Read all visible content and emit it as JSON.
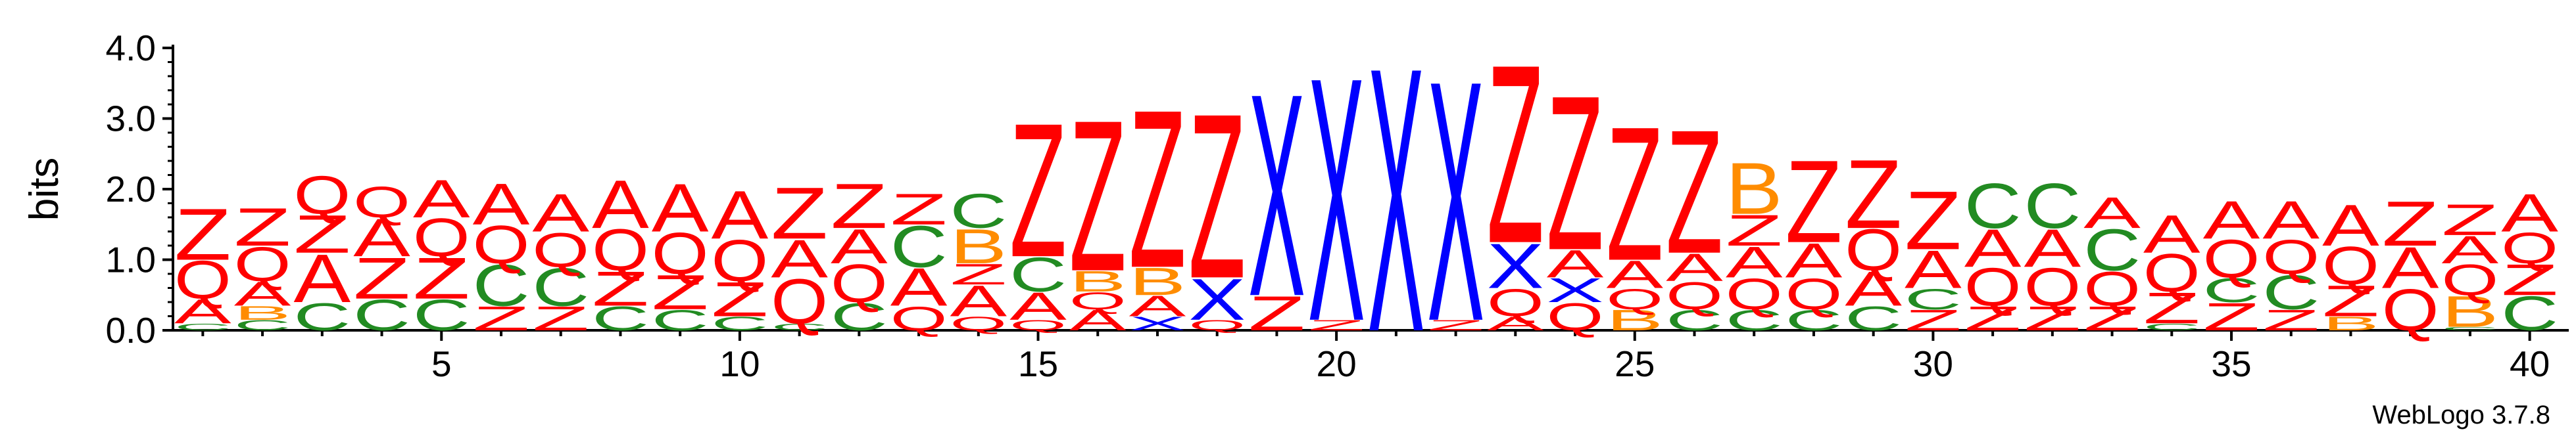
{
  "chart_data": {
    "type": "sequence-logo",
    "ylabel": "bits",
    "ylim": [
      0,
      4.0
    ],
    "yticks": [
      "0.0",
      "1.0",
      "2.0",
      "3.0",
      "4.0"
    ],
    "xticks": [
      5,
      10,
      15,
      20,
      25,
      30,
      35,
      40
    ],
    "credit": "WebLogo 3.7.8",
    "colors": {
      "Z": "#ff0000",
      "Q": "#ff0000",
      "A": "#ff0000",
      "X": "#0000ff",
      "C": "#228b22",
      "B": "#ff8c00"
    },
    "positions": [
      {
        "pos": 1,
        "letters": [
          [
            "C",
            0.1
          ],
          [
            "A",
            0.35
          ],
          [
            "Q",
            0.55
          ],
          [
            "Z",
            0.75
          ]
        ]
      },
      {
        "pos": 2,
        "letters": [
          [
            "C",
            0.15
          ],
          [
            "B",
            0.2
          ],
          [
            "A",
            0.35
          ],
          [
            "Q",
            0.5
          ],
          [
            "Z",
            0.55
          ]
        ]
      },
      {
        "pos": 3,
        "letters": [
          [
            "C",
            0.4
          ],
          [
            "A",
            0.7
          ],
          [
            "Z",
            0.55
          ],
          [
            "Q",
            0.55
          ]
        ]
      },
      {
        "pos": 4,
        "letters": [
          [
            "C",
            0.45
          ],
          [
            "Z",
            0.6
          ],
          [
            "A",
            0.55
          ],
          [
            "Q",
            0.45
          ]
        ]
      },
      {
        "pos": 5,
        "letters": [
          [
            "C",
            0.45
          ],
          [
            "Z",
            0.6
          ],
          [
            "Q",
            0.55
          ],
          [
            "A",
            0.55
          ]
        ]
      },
      {
        "pos": 6,
        "letters": [
          [
            "Z",
            0.35
          ],
          [
            "C",
            0.6
          ],
          [
            "Q",
            0.55
          ],
          [
            "A",
            0.6
          ]
        ]
      },
      {
        "pos": 7,
        "letters": [
          [
            "Z",
            0.35
          ],
          [
            "C",
            0.55
          ],
          [
            "Q",
            0.5
          ],
          [
            "A",
            0.55
          ]
        ]
      },
      {
        "pos": 8,
        "letters": [
          [
            "C",
            0.35
          ],
          [
            "Z",
            0.5
          ],
          [
            "Q",
            0.6
          ],
          [
            "A",
            0.7
          ]
        ]
      },
      {
        "pos": 9,
        "letters": [
          [
            "C",
            0.3
          ],
          [
            "Z",
            0.5
          ],
          [
            "Q",
            0.6
          ],
          [
            "A",
            0.7
          ]
        ]
      },
      {
        "pos": 10,
        "letters": [
          [
            "C",
            0.2
          ],
          [
            "Z",
            0.5
          ],
          [
            "Q",
            0.6
          ],
          [
            "A",
            0.7
          ]
        ]
      },
      {
        "pos": 11,
        "letters": [
          [
            "C",
            0.1
          ],
          [
            "Q",
            0.65
          ],
          [
            "A",
            0.55
          ],
          [
            "Z",
            0.75
          ]
        ]
      },
      {
        "pos": 12,
        "letters": [
          [
            "C",
            0.4
          ],
          [
            "Q",
            0.55
          ],
          [
            "A",
            0.5
          ],
          [
            "Z",
            0.65
          ]
        ]
      },
      {
        "pos": 13,
        "letters": [
          [
            "Q",
            0.35
          ],
          [
            "A",
            0.55
          ],
          [
            "C",
            0.6
          ],
          [
            "Z",
            0.45
          ]
        ]
      },
      {
        "pos": 14,
        "letters": [
          [
            "Q",
            0.2
          ],
          [
            "A",
            0.45
          ],
          [
            "Z",
            0.3
          ],
          [
            "B",
            0.5
          ],
          [
            "C",
            0.5
          ]
        ]
      },
      {
        "pos": 15,
        "letters": [
          [
            "Q",
            0.15
          ],
          [
            "A",
            0.4
          ],
          [
            "C",
            0.5
          ],
          [
            "Z",
            1.95
          ]
        ]
      },
      {
        "pos": 16,
        "letters": [
          [
            "A",
            0.3
          ],
          [
            "Q",
            0.25
          ],
          [
            "B",
            0.3
          ],
          [
            "Z",
            2.2
          ]
        ]
      },
      {
        "pos": 17,
        "letters": [
          [
            "X",
            0.2
          ],
          [
            "A",
            0.3
          ],
          [
            "B",
            0.4
          ],
          [
            "Z",
            2.3
          ]
        ]
      },
      {
        "pos": 18,
        "letters": [
          [
            "Q",
            0.15
          ],
          [
            "X",
            0.6
          ],
          [
            "Z",
            2.4
          ]
        ]
      },
      {
        "pos": 19,
        "letters": [
          [
            "Z",
            0.5
          ],
          [
            "X",
            2.95
          ]
        ]
      },
      {
        "pos": 20,
        "letters": [
          [
            "Z",
            0.15
          ],
          [
            "X",
            3.55
          ]
        ]
      },
      {
        "pos": 21,
        "letters": [
          [
            "X",
            3.85
          ]
        ]
      },
      {
        "pos": 22,
        "letters": [
          [
            "Z",
            0.15
          ],
          [
            "X",
            3.5
          ]
        ]
      },
      {
        "pos": 23,
        "letters": [
          [
            "A",
            0.2
          ],
          [
            "Q",
            0.4
          ],
          [
            "X",
            0.65
          ],
          [
            "Z",
            2.6
          ]
        ]
      },
      {
        "pos": 24,
        "letters": [
          [
            "Q",
            0.4
          ],
          [
            "X",
            0.35
          ],
          [
            "A",
            0.4
          ],
          [
            "Z",
            2.25
          ]
        ]
      },
      {
        "pos": 25,
        "letters": [
          [
            "B",
            0.3
          ],
          [
            "Q",
            0.3
          ],
          [
            "A",
            0.4
          ],
          [
            "Z",
            1.95
          ]
        ]
      },
      {
        "pos": 26,
        "letters": [
          [
            "C",
            0.3
          ],
          [
            "Q",
            0.4
          ],
          [
            "A",
            0.4
          ],
          [
            "Z",
            1.8
          ]
        ]
      },
      {
        "pos": 27,
        "letters": [
          [
            "C",
            0.3
          ],
          [
            "Q",
            0.45
          ],
          [
            "A",
            0.45
          ],
          [
            "Z",
            0.45
          ],
          [
            "B",
            0.75
          ]
        ]
      },
      {
        "pos": 28,
        "letters": [
          [
            "C",
            0.3
          ],
          [
            "Q",
            0.45
          ],
          [
            "A",
            0.5
          ],
          [
            "Z",
            1.2
          ]
        ]
      },
      {
        "pos": 29,
        "letters": [
          [
            "C",
            0.35
          ],
          [
            "A",
            0.5
          ],
          [
            "Q",
            0.6
          ],
          [
            "Z",
            1.0
          ]
        ]
      },
      {
        "pos": 30,
        "letters": [
          [
            "Z",
            0.3
          ],
          [
            "C",
            0.3
          ],
          [
            "A",
            0.55
          ],
          [
            "Z",
            0.85
          ]
        ]
      },
      {
        "pos": 31,
        "letters": [
          [
            "Z",
            0.35
          ],
          [
            "Q",
            0.55
          ],
          [
            "A",
            0.55
          ],
          [
            "C",
            0.65
          ]
        ]
      },
      {
        "pos": 32,
        "letters": [
          [
            "Z",
            0.35
          ],
          [
            "Q",
            0.55
          ],
          [
            "A",
            0.55
          ],
          [
            "C",
            0.65
          ]
        ]
      },
      {
        "pos": 33,
        "letters": [
          [
            "Z",
            0.35
          ],
          [
            "Q",
            0.5
          ],
          [
            "C",
            0.6
          ],
          [
            "A",
            0.45
          ]
        ]
      },
      {
        "pos": 34,
        "letters": [
          [
            "C",
            0.1
          ],
          [
            "Z",
            0.45
          ],
          [
            "Q",
            0.55
          ],
          [
            "A",
            0.55
          ]
        ]
      },
      {
        "pos": 35,
        "letters": [
          [
            "Z",
            0.4
          ],
          [
            "C",
            0.35
          ],
          [
            "Q",
            0.55
          ],
          [
            "A",
            0.55
          ]
        ]
      },
      {
        "pos": 36,
        "letters": [
          [
            "Z",
            0.3
          ],
          [
            "C",
            0.5
          ],
          [
            "Q",
            0.5
          ],
          [
            "A",
            0.55
          ]
        ]
      },
      {
        "pos": 37,
        "letters": [
          [
            "B",
            0.2
          ],
          [
            "Z",
            0.45
          ],
          [
            "Q",
            0.55
          ],
          [
            "A",
            0.6
          ]
        ]
      },
      {
        "pos": 38,
        "letters": [
          [
            "Q",
            0.6
          ],
          [
            "A",
            0.6
          ],
          [
            "Z",
            0.65
          ]
        ]
      },
      {
        "pos": 39,
        "letters": [
          [
            "C",
            0.05
          ],
          [
            "B",
            0.45
          ],
          [
            "Q",
            0.45
          ],
          [
            "A",
            0.4
          ],
          [
            "Z",
            0.45
          ]
        ]
      },
      {
        "pos": 40,
        "letters": [
          [
            "C",
            0.5
          ],
          [
            "Z",
            0.45
          ],
          [
            "Q",
            0.45
          ],
          [
            "A",
            0.55
          ]
        ]
      }
    ]
  }
}
